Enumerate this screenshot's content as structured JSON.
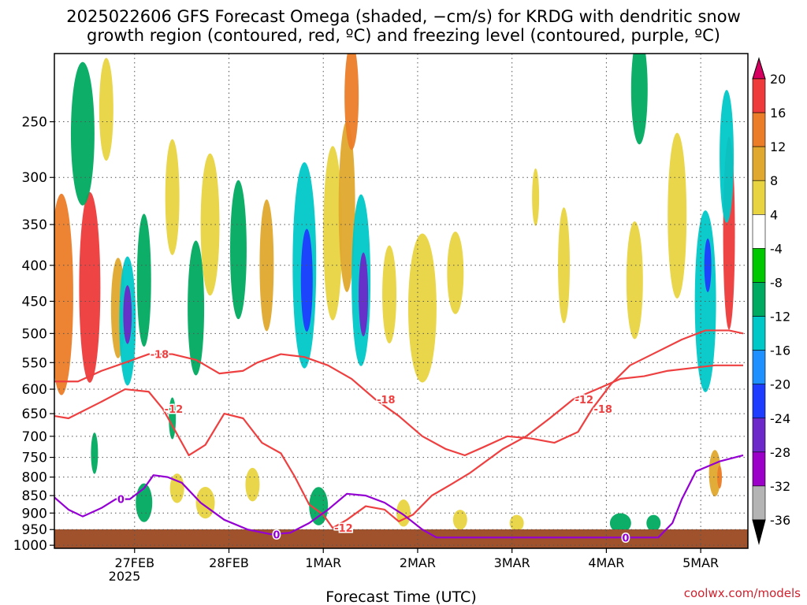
{
  "title": {
    "line1": "2025022606 GFS Forecast Omega (shaded, −cm/s) for KRDG with dendritic snow",
    "line2": "growth region (contoured, red, ºC) and freezing level (contoured, purple, ºC)"
  },
  "credit": "coolwx.com/models",
  "chart_data": {
    "type": "heatmap",
    "xlabel": "Forecast Time (UTC)",
    "ylabel": "",
    "x_ticks": [
      "27FEB",
      "28FEB",
      "1MAR",
      "2MAR",
      "3MAR",
      "4MAR",
      "5MAR"
    ],
    "x_year_label": "2025",
    "x_range": [
      "2025-02-26T06",
      "2025-03-05T18"
    ],
    "y_ticks": [
      250,
      300,
      350,
      400,
      450,
      500,
      550,
      600,
      650,
      700,
      750,
      800,
      850,
      900,
      950,
      1000
    ],
    "y_range_hpa": [
      1010,
      200
    ],
    "y_scale": "log-pressure",
    "grid": true,
    "colorbar": {
      "labels": [
        20,
        16,
        12,
        8,
        4,
        -4,
        -8,
        -12,
        -16,
        -20,
        -24,
        -28,
        -32,
        -36
      ],
      "colors": [
        "#d60060",
        "#ee3a3a",
        "#ec7d28",
        "#e0a82e",
        "#e8d440",
        "#ffffff",
        "#00c800",
        "#00aa60",
        "#00c8c8",
        "#1e90ff",
        "#1e3cff",
        "#6c28c8",
        "#9b00c8",
        "#b4b4b4",
        "#000000"
      ]
    },
    "surface_color": "#a0522d",
    "dendritic_contours": {
      "color": "#ee4040",
      "series": [
        {
          "name": "-12",
          "values": [
            [
              0,
              655
            ],
            [
              0.3,
              660
            ],
            [
              1.0,
              625
            ],
            [
              1.5,
              600
            ],
            [
              2.0,
              605
            ],
            [
              2.3,
              640
            ],
            [
              2.6,
              695
            ],
            [
              2.85,
              745
            ],
            [
              3.2,
              720
            ],
            [
              3.6,
              650
            ],
            [
              4.0,
              660
            ],
            [
              4.4,
              715
            ],
            [
              4.8,
              740
            ],
            [
              5.1,
              800
            ],
            [
              5.4,
              875
            ],
            [
              5.7,
              905
            ],
            [
              5.9,
              945
            ],
            [
              6.2,
              920
            ],
            [
              6.6,
              880
            ],
            [
              7.0,
              890
            ],
            [
              7.3,
              925
            ],
            [
              7.6,
              905
            ],
            [
              8.0,
              850
            ],
            [
              8.4,
              820
            ],
            [
              8.8,
              790
            ],
            [
              9.5,
              730
            ],
            [
              10.0,
              700
            ],
            [
              10.5,
              660
            ],
            [
              11.0,
              620
            ],
            [
              11.5,
              600
            ],
            [
              12.0,
              580
            ],
            [
              12.5,
              575
            ],
            [
              13.0,
              565
            ],
            [
              13.5,
              560
            ],
            [
              14.0,
              555
            ],
            [
              14.6,
              555
            ]
          ]
        },
        {
          "name": "-18",
          "values": [
            [
              0,
              585
            ],
            [
              0.5,
              585
            ],
            [
              1.0,
              565
            ],
            [
              1.5,
              550
            ],
            [
              2.0,
              535
            ],
            [
              2.5,
              535
            ],
            [
              3.0,
              545
            ],
            [
              3.5,
              570
            ],
            [
              4.0,
              565
            ],
            [
              4.3,
              550
            ],
            [
              4.8,
              535
            ],
            [
              5.3,
              540
            ],
            [
              5.8,
              555
            ],
            [
              6.3,
              580
            ],
            [
              6.8,
              620
            ],
            [
              7.3,
              655
            ],
            [
              7.8,
              700
            ],
            [
              8.3,
              730
            ],
            [
              8.7,
              745
            ],
            [
              9.1,
              725
            ],
            [
              9.6,
              700
            ],
            [
              10.1,
              705
            ],
            [
              10.6,
              715
            ],
            [
              11.1,
              690
            ],
            [
              11.4,
              640
            ],
            [
              11.8,
              590
            ],
            [
              12.2,
              555
            ],
            [
              12.8,
              530
            ],
            [
              13.3,
              510
            ],
            [
              13.8,
              495
            ],
            [
              14.3,
              495
            ],
            [
              14.6,
              500
            ]
          ]
        }
      ]
    },
    "freezing_contour": {
      "color": "#9400d3",
      "series": [
        {
          "name": "0",
          "values": [
            [
              0,
              855
            ],
            [
              0.3,
              890
            ],
            [
              0.6,
              910
            ],
            [
              1.0,
              885
            ],
            [
              1.3,
              860
            ],
            [
              1.6,
              860
            ],
            [
              1.9,
              830
            ],
            [
              2.1,
              795
            ],
            [
              2.4,
              800
            ],
            [
              2.7,
              815
            ],
            [
              3.1,
              870
            ],
            [
              3.6,
              920
            ],
            [
              4.1,
              950
            ],
            [
              4.6,
              965
            ],
            [
              5.0,
              960
            ],
            [
              5.4,
              930
            ],
            [
              5.8,
              890
            ],
            [
              6.2,
              845
            ],
            [
              6.6,
              850
            ],
            [
              7.0,
              870
            ],
            [
              7.4,
              905
            ],
            [
              7.8,
              950
            ],
            [
              8.1,
              975
            ],
            [
              11.2,
              975
            ],
            [
              12.0,
              975
            ],
            [
              12.8,
              975
            ],
            [
              13.1,
              930
            ],
            [
              13.3,
              860
            ],
            [
              13.6,
              785
            ],
            [
              14.1,
              760
            ],
            [
              14.6,
              745
            ]
          ]
        }
      ]
    },
    "omega_cells": [
      {
        "t": 0.15,
        "p": 440,
        "dt": 0.5,
        "dp": 280,
        "v": 12
      },
      {
        "t": 0.75,
        "p": 430,
        "dt": 0.45,
        "dp": 260,
        "v": 16
      },
      {
        "t": 1.35,
        "p": 460,
        "dt": 0.3,
        "dp": 150,
        "v": 8
      },
      {
        "t": 1.55,
        "p": 480,
        "dt": 0.35,
        "dp": 200,
        "v": -12
      },
      {
        "t": 1.55,
        "p": 470,
        "dt": 0.18,
        "dp": 90,
        "v": -24
      },
      {
        "t": 1.9,
        "p": 420,
        "dt": 0.3,
        "dp": 180,
        "v": -8
      },
      {
        "t": 2.5,
        "p": 320,
        "dt": 0.3,
        "dp": 120,
        "v": 4
      },
      {
        "t": 0.6,
        "p": 260,
        "dt": 0.5,
        "dp": 120,
        "v": -8
      },
      {
        "t": 1.1,
        "p": 240,
        "dt": 0.3,
        "dp": 80,
        "v": 4
      },
      {
        "t": 3.0,
        "p": 460,
        "dt": 0.35,
        "dp": 200,
        "v": -8
      },
      {
        "t": 3.3,
        "p": 350,
        "dt": 0.4,
        "dp": 160,
        "v": 4
      },
      {
        "t": 3.9,
        "p": 380,
        "dt": 0.35,
        "dp": 170,
        "v": -8
      },
      {
        "t": 4.5,
        "p": 400,
        "dt": 0.3,
        "dp": 170,
        "v": 8
      },
      {
        "t": 5.3,
        "p": 400,
        "dt": 0.5,
        "dp": 260,
        "v": -12
      },
      {
        "t": 5.35,
        "p": 420,
        "dt": 0.25,
        "dp": 140,
        "v": -20
      },
      {
        "t": 5.9,
        "p": 360,
        "dt": 0.4,
        "dp": 200,
        "v": 4
      },
      {
        "t": 6.2,
        "p": 330,
        "dt": 0.35,
        "dp": 180,
        "v": 8
      },
      {
        "t": 6.5,
        "p": 420,
        "dt": 0.4,
        "dp": 230,
        "v": -12
      },
      {
        "t": 6.55,
        "p": 440,
        "dt": 0.2,
        "dp": 120,
        "v": -24
      },
      {
        "t": 6.3,
        "p": 230,
        "dt": 0.3,
        "dp": 80,
        "v": 12
      },
      {
        "t": 7.1,
        "p": 440,
        "dt": 0.3,
        "dp": 140,
        "v": 4
      },
      {
        "t": 7.8,
        "p": 460,
        "dt": 0.6,
        "dp": 220,
        "v": 4
      },
      {
        "t": 8.5,
        "p": 410,
        "dt": 0.35,
        "dp": 110,
        "v": 4
      },
      {
        "t": 10.8,
        "p": 400,
        "dt": 0.25,
        "dp": 150,
        "v": 4
      },
      {
        "t": 10.2,
        "p": 320,
        "dt": 0.15,
        "dp": 60,
        "v": 4
      },
      {
        "t": 12.3,
        "p": 420,
        "dt": 0.35,
        "dp": 160,
        "v": 4
      },
      {
        "t": 12.4,
        "p": 225,
        "dt": 0.35,
        "dp": 80,
        "v": -8
      },
      {
        "t": 13.8,
        "p": 450,
        "dt": 0.45,
        "dp": 260,
        "v": -12
      },
      {
        "t": 13.85,
        "p": 400,
        "dt": 0.15,
        "dp": 70,
        "v": -20
      },
      {
        "t": 14.3,
        "p": 360,
        "dt": 0.25,
        "dp": 220,
        "v": 16
      },
      {
        "t": 14.25,
        "p": 280,
        "dt": 0.3,
        "dp": 120,
        "v": -12
      },
      {
        "t": 13.2,
        "p": 340,
        "dt": 0.4,
        "dp": 180,
        "v": 4
      },
      {
        "t": 1.9,
        "p": 870,
        "dt": 0.35,
        "dp": 110,
        "v": -8
      },
      {
        "t": 2.6,
        "p": 830,
        "dt": 0.3,
        "dp": 80,
        "v": 4
      },
      {
        "t": 3.2,
        "p": 870,
        "dt": 0.4,
        "dp": 90,
        "v": 4
      },
      {
        "t": 4.2,
        "p": 820,
        "dt": 0.3,
        "dp": 90,
        "v": 4
      },
      {
        "t": 5.6,
        "p": 880,
        "dt": 0.4,
        "dp": 110,
        "v": -8
      },
      {
        "t": 7.4,
        "p": 900,
        "dt": 0.3,
        "dp": 80,
        "v": 4
      },
      {
        "t": 8.6,
        "p": 920,
        "dt": 0.3,
        "dp": 60,
        "v": 4
      },
      {
        "t": 9.8,
        "p": 930,
        "dt": 0.3,
        "dp": 50,
        "v": 4
      },
      {
        "t": 12.0,
        "p": 930,
        "dt": 0.45,
        "dp": 60,
        "v": -8
      },
      {
        "t": 12.7,
        "p": 930,
        "dt": 0.3,
        "dp": 50,
        "v": -8
      },
      {
        "t": 14.0,
        "p": 790,
        "dt": 0.25,
        "dp": 120,
        "v": 8
      },
      {
        "t": 14.1,
        "p": 800,
        "dt": 0.1,
        "dp": 60,
        "v": 12
      },
      {
        "t": 0.85,
        "p": 740,
        "dt": 0.15,
        "dp": 100,
        "v": -8
      },
      {
        "t": 2.5,
        "p": 660,
        "dt": 0.15,
        "dp": 90,
        "v": -8
      }
    ]
  }
}
